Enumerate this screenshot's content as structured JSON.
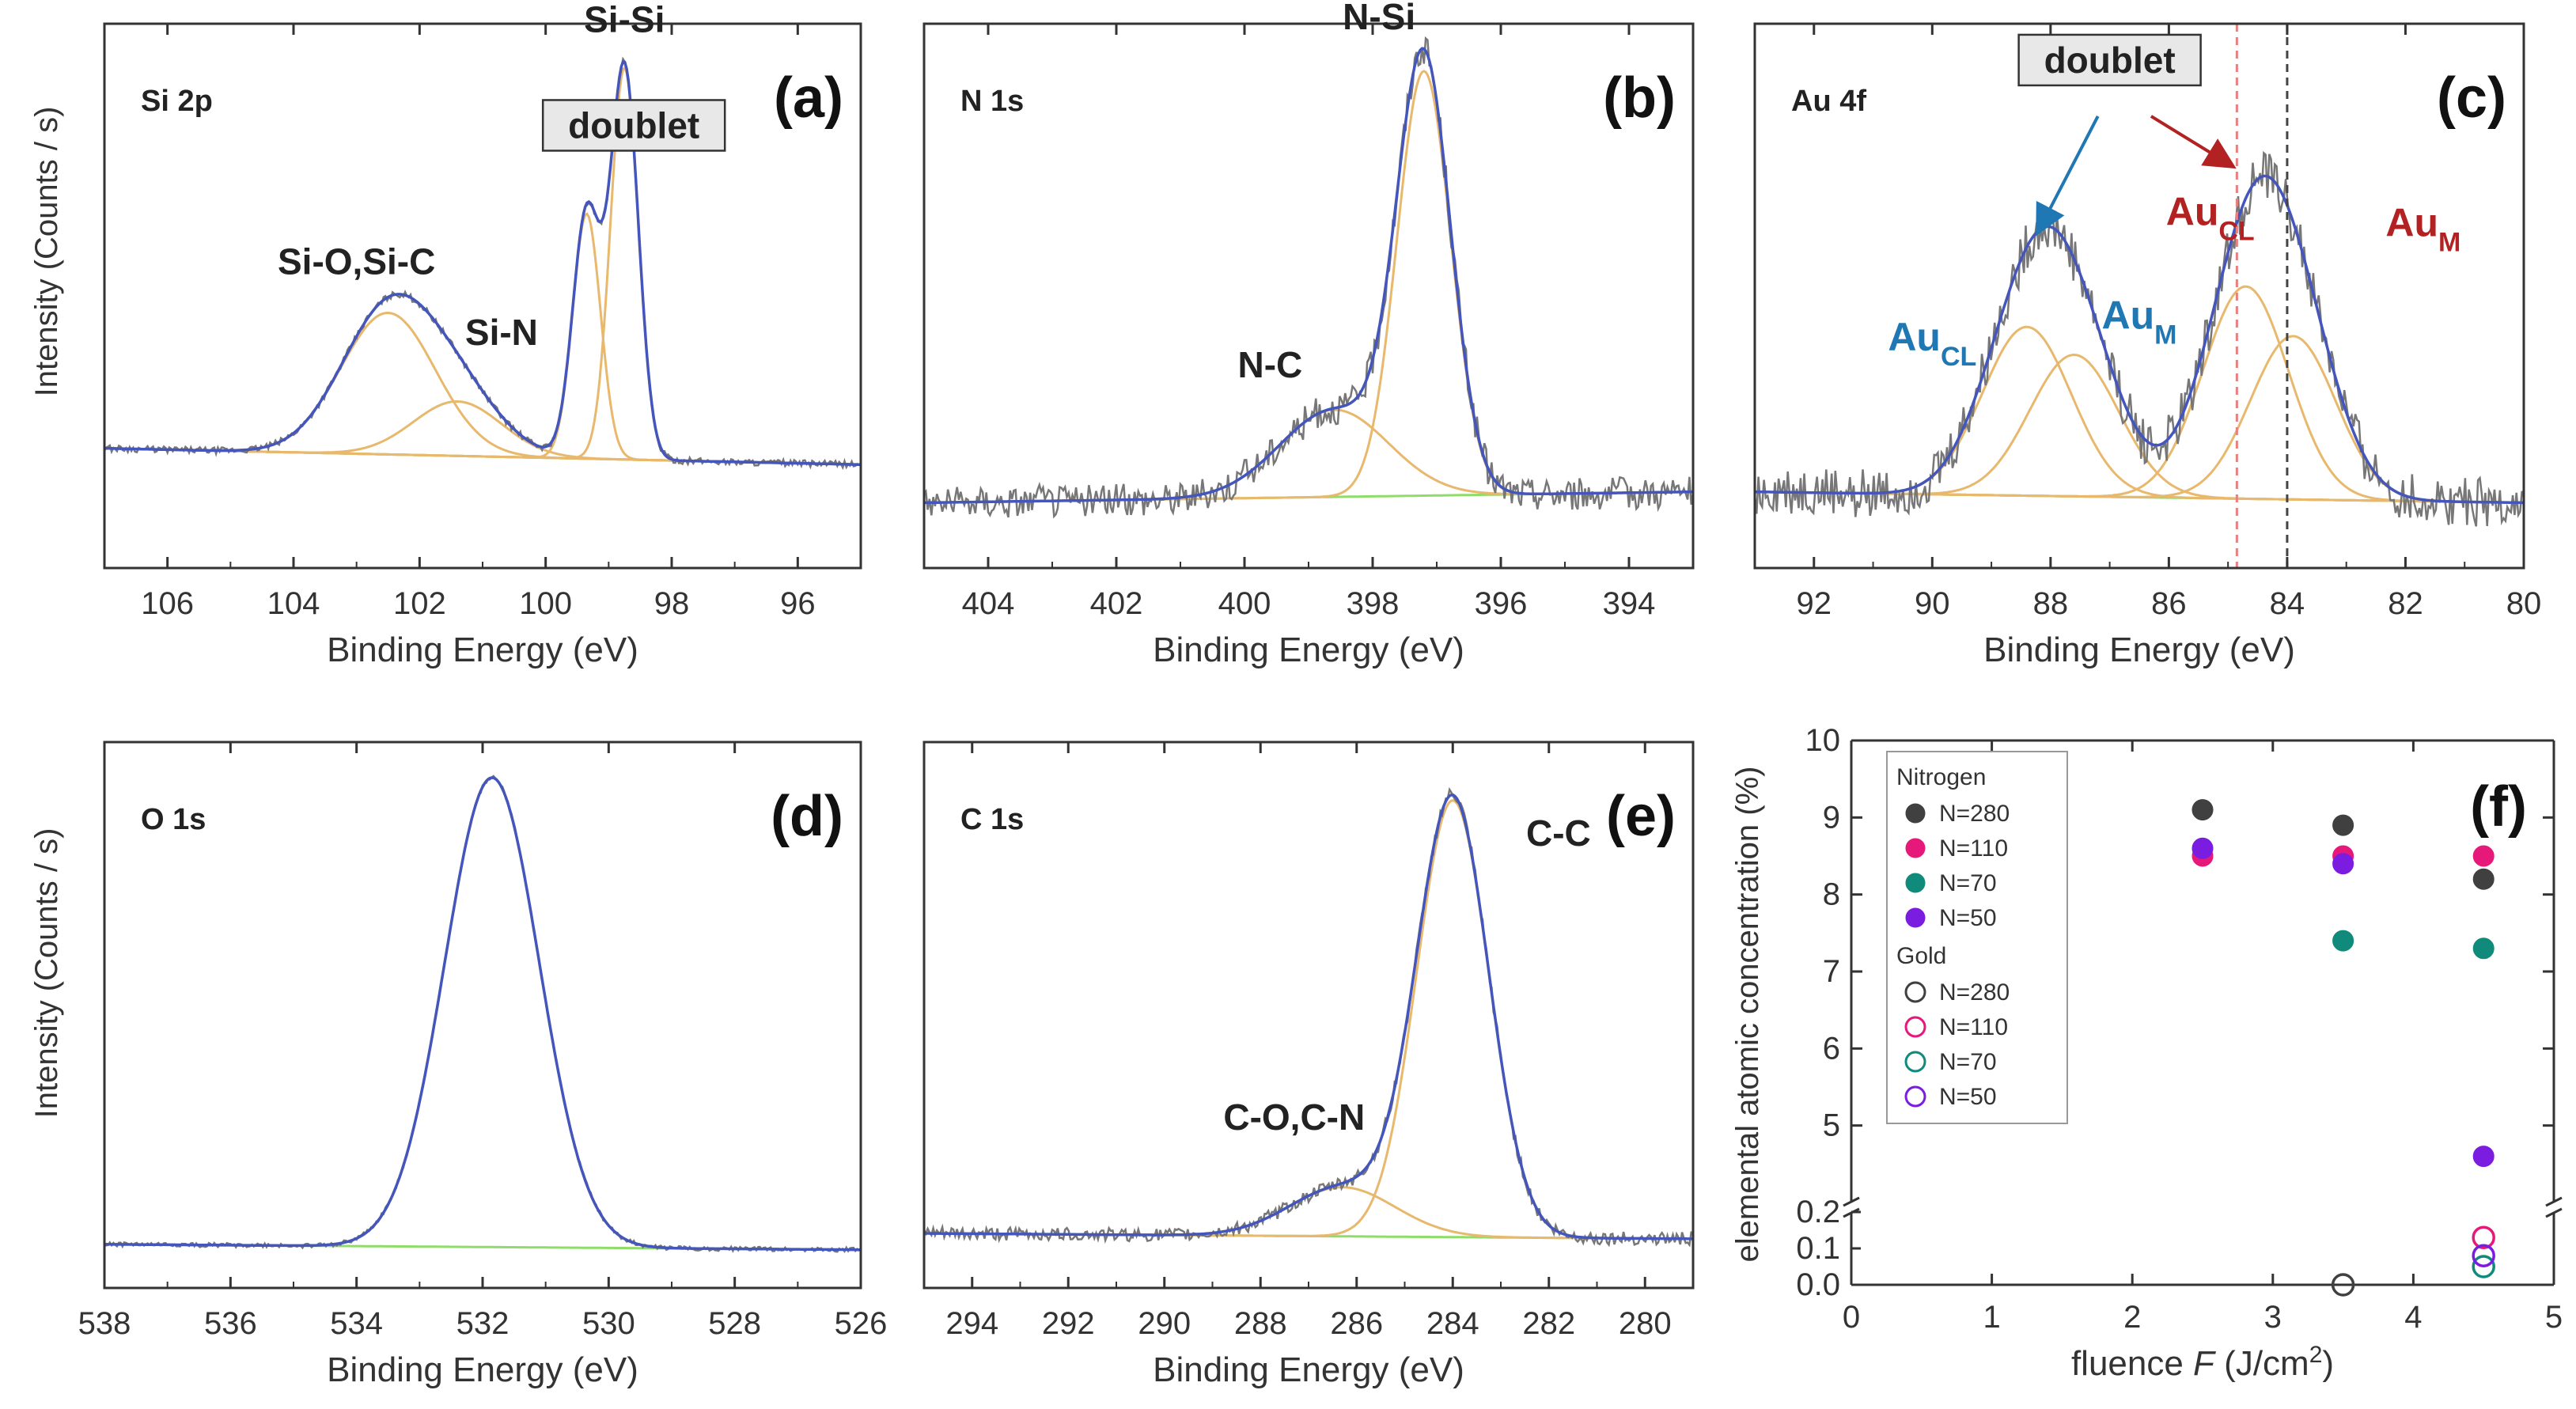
{
  "figure": {
    "colors": {
      "frame": "#333333",
      "raw": "#777777",
      "fit": "#4455bb",
      "component": "#e8b86d",
      "background": "#8fdc6a",
      "gold_blue": "#1f77b4",
      "gold_red": "#b22222",
      "nitrogen_280": "#404040",
      "nitrogen_110": "#e6197a",
      "nitrogen_70": "#108a7a",
      "nitrogen_50": "#7a1de0"
    }
  },
  "chart_data": [
    {
      "id": "a",
      "type": "line",
      "panel_label": "(a)",
      "corner_label": "Si 2p",
      "xlabel": "Binding Energy (eV)",
      "ylabel": "Intensity (Counts / s)",
      "xlim": [
        107,
        95
      ],
      "xticks": [
        106,
        104,
        102,
        100,
        98,
        96
      ],
      "ylim": [
        0,
        1
      ],
      "background_line": {
        "start": 0.22,
        "end": 0.19
      },
      "peaks": [
        {
          "center": 102.5,
          "height": 0.26,
          "width": 0.75
        },
        {
          "center": 101.4,
          "height": 0.1,
          "width": 0.7
        },
        {
          "center": 99.35,
          "height": 0.45,
          "width": 0.22
        },
        {
          "center": 98.75,
          "height": 0.72,
          "width": 0.22
        }
      ],
      "noise": 0.006,
      "annotations": [
        {
          "text": "Si-Si",
          "x": 98.75,
          "y": 0.985,
          "style": "plain",
          "anchor": "middle"
        },
        {
          "text": "doublet",
          "x": 98.6,
          "y": 0.79,
          "style": "box",
          "anchor": "middle"
        },
        {
          "text": "Si-O,Si-C",
          "x": 103.0,
          "y": 0.54,
          "style": "plain",
          "anchor": "middle"
        },
        {
          "text": "Si-N",
          "x": 100.7,
          "y": 0.41,
          "style": "plain",
          "anchor": "middle"
        }
      ]
    },
    {
      "id": "b",
      "type": "line",
      "panel_label": "(b)",
      "corner_label": "N 1s",
      "xlabel": "Binding Energy (eV)",
      "ylabel": "",
      "xlim": [
        405,
        393
      ],
      "xticks": [
        404,
        402,
        400,
        398,
        396,
        394
      ],
      "ylim": [
        0,
        1
      ],
      "background_line": {
        "start": 0.12,
        "end": 0.14
      },
      "peaks": [
        {
          "center": 398.6,
          "height": 0.16,
          "width": 0.85
        },
        {
          "center": 397.2,
          "height": 0.78,
          "width": 0.42
        }
      ],
      "noise": 0.03,
      "annotations": [
        {
          "text": "N-Si",
          "x": 397.9,
          "y": 0.99,
          "style": "plain",
          "anchor": "middle"
        },
        {
          "text": "N-C",
          "x": 399.6,
          "y": 0.35,
          "style": "plain",
          "anchor": "middle"
        }
      ]
    },
    {
      "id": "c",
      "type": "line",
      "panel_label": "(c)",
      "corner_label": "Au 4f",
      "xlabel": "Binding Energy (eV)",
      "ylabel": "",
      "xlim": [
        93,
        80
      ],
      "xticks": [
        92,
        90,
        88,
        86,
        84,
        82,
        80
      ],
      "ylim": [
        0,
        1
      ],
      "background_line": {
        "start": 0.14,
        "end": 0.12
      },
      "peaks": [
        {
          "center": 88.4,
          "height": 0.31,
          "width": 0.75
        },
        {
          "center": 87.6,
          "height": 0.26,
          "width": 0.75
        },
        {
          "center": 84.7,
          "height": 0.39,
          "width": 0.72
        },
        {
          "center": 83.9,
          "height": 0.3,
          "width": 0.72
        }
      ],
      "noise": 0.045,
      "vlines": [
        {
          "x": 84.85,
          "color": "#e88080"
        },
        {
          "x": 84.0,
          "color": "#444444"
        }
      ],
      "annotations": [
        {
          "text": "doublet",
          "x": 87.0,
          "y": 0.91,
          "style": "box",
          "anchor": "middle"
        },
        {
          "text": "Au",
          "sub": "CL",
          "x": 90.0,
          "y": 0.4,
          "style": "blue",
          "anchor": "middle"
        },
        {
          "text": "Au",
          "sub": "M",
          "x": 86.5,
          "y": 0.44,
          "style": "blue",
          "anchor": "middle"
        },
        {
          "text": "Au",
          "sub": "CL",
          "x": 85.3,
          "y": 0.63,
          "style": "red",
          "anchor": "middle"
        },
        {
          "text": "Au",
          "sub": "M",
          "x": 81.7,
          "y": 0.61,
          "style": "red",
          "anchor": "middle"
        }
      ]
    },
    {
      "id": "d",
      "type": "line",
      "panel_label": "(d)",
      "corner_label": "O 1s",
      "xlabel": "Binding Energy (eV)",
      "ylabel": "Intensity (Counts / s)",
      "xlim": [
        538,
        526
      ],
      "xticks": [
        538,
        536,
        534,
        532,
        530,
        528,
        526
      ],
      "ylim": [
        0,
        1
      ],
      "background_line": {
        "start": 0.08,
        "end": 0.07
      },
      "peaks": [
        {
          "center": 531.85,
          "height": 0.86,
          "width": 0.75
        }
      ],
      "noise": 0.004,
      "annotations": []
    },
    {
      "id": "e",
      "type": "line",
      "panel_label": "(e)",
      "corner_label": "C 1s",
      "xlabel": "Binding Energy (eV)",
      "ylabel": "",
      "xlim": [
        295,
        279
      ],
      "xticks": [
        294,
        292,
        290,
        288,
        286,
        284,
        282,
        280
      ],
      "ylim": [
        0,
        1
      ],
      "background_line": {
        "start": 0.1,
        "end": 0.09
      },
      "peaks": [
        {
          "center": 286.3,
          "height": 0.09,
          "width": 1.1
        },
        {
          "center": 284.0,
          "height": 0.8,
          "width": 0.75
        }
      ],
      "noise": 0.012,
      "annotations": [
        {
          "text": "C-C",
          "x": 281.8,
          "y": 0.81,
          "style": "plain",
          "anchor": "middle"
        },
        {
          "text": "C-O,C-N",
          "x": 287.3,
          "y": 0.29,
          "style": "plain",
          "anchor": "middle"
        }
      ]
    },
    {
      "id": "f",
      "type": "scatter",
      "panel_label": "(f)",
      "xlabel_prefix": "fluence ",
      "xlabel_var": "F",
      "xlabel_unit": " (J/cm",
      "xlabel_sup": "2",
      "xlabel_close": ")",
      "ylabel": "elemental atomic concentration (%)",
      "xlim": [
        0,
        5
      ],
      "xticks": [
        0,
        1,
        2,
        3,
        4,
        5
      ],
      "upper_ylim": [
        4.0,
        10.0
      ],
      "upper_yticks": [
        5,
        6,
        7,
        8,
        9,
        10
      ],
      "lower_ylim": [
        0.0,
        0.2
      ],
      "lower_yticks": [
        "0.0",
        "0.1",
        "0.2"
      ],
      "legend": {
        "groups": [
          {
            "title": "Nitrogen",
            "filled": true,
            "entries": [
              "N=280",
              "N=110",
              "N=70",
              "N=50"
            ]
          },
          {
            "title": "Gold",
            "filled": false,
            "entries": [
              "N=280",
              "N=110",
              "N=70",
              "N=50"
            ]
          }
        ],
        "colors": [
          "#404040",
          "#e6197a",
          "#108a7a",
          "#7a1de0"
        ]
      },
      "series": [
        {
          "name": "Nitrogen N=280",
          "element": "Nitrogen",
          "N": 280,
          "filled": true,
          "color": "#404040",
          "x": [
            2.5,
            3.5,
            4.5
          ],
          "y": [
            9.1,
            8.9,
            8.2
          ]
        },
        {
          "name": "Nitrogen N=110",
          "element": "Nitrogen",
          "N": 110,
          "filled": true,
          "color": "#e6197a",
          "x": [
            2.5,
            3.5,
            4.5
          ],
          "y": [
            8.5,
            8.5,
            8.5
          ]
        },
        {
          "name": "Nitrogen N=70",
          "element": "Nitrogen",
          "N": 70,
          "filled": true,
          "color": "#108a7a",
          "x": [
            3.5,
            4.5
          ],
          "y": [
            7.4,
            7.3
          ]
        },
        {
          "name": "Nitrogen N=50",
          "element": "Nitrogen",
          "N": 50,
          "filled": true,
          "color": "#7a1de0",
          "x": [
            2.5,
            3.5,
            4.5
          ],
          "y": [
            8.6,
            8.4,
            4.6
          ]
        },
        {
          "name": "Gold N=280",
          "element": "Gold",
          "N": 280,
          "filled": false,
          "color": "#404040",
          "x": [
            3.5
          ],
          "y": [
            0.0
          ]
        },
        {
          "name": "Gold N=110",
          "element": "Gold",
          "N": 110,
          "filled": false,
          "color": "#e6197a",
          "x": [
            4.5
          ],
          "y": [
            0.13
          ]
        },
        {
          "name": "Gold N=70",
          "element": "Gold",
          "N": 70,
          "filled": false,
          "color": "#108a7a",
          "x": [
            4.5
          ],
          "y": [
            0.05
          ]
        },
        {
          "name": "Gold N=50",
          "element": "Gold",
          "N": 50,
          "filled": false,
          "color": "#7a1de0",
          "x": [
            4.5
          ],
          "y": [
            0.08
          ]
        }
      ]
    }
  ]
}
